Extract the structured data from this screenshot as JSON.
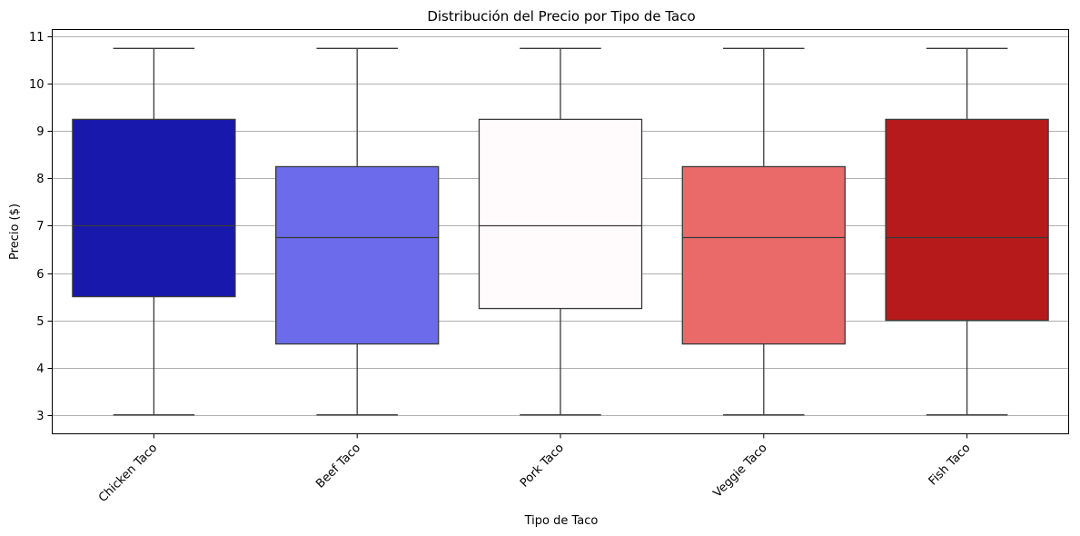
{
  "chart_data": {
    "type": "box",
    "title": "Distribución del Precio por Tipo de Taco",
    "xlabel": "Tipo de Taco",
    "ylabel": "Precio ($)",
    "ylim": [
      2.6,
      11.15
    ],
    "yticks": [
      3,
      4,
      5,
      6,
      7,
      8,
      9,
      10,
      11
    ],
    "grid": "horizontal",
    "categories": [
      "Chicken Taco",
      "Beef Taco",
      "Pork Taco",
      "Veggie Taco",
      "Fish Taco"
    ],
    "boxes": [
      {
        "category": "Chicken Taco",
        "min": 3,
        "q1": 5.5,
        "median": 7.0,
        "q3": 9.25,
        "max": 10.75,
        "color": "#1818ad"
      },
      {
        "category": "Beef Taco",
        "min": 3,
        "q1": 4.5,
        "median": 6.75,
        "q3": 8.25,
        "max": 10.75,
        "color": "#6b6beb"
      },
      {
        "category": "Pork Taco",
        "min": 3,
        "q1": 5.25,
        "median": 7.0,
        "q3": 9.25,
        "max": 10.75,
        "color": "#fffbfd"
      },
      {
        "category": "Veggie Taco",
        "min": 3,
        "q1": 4.5,
        "median": 6.75,
        "q3": 8.25,
        "max": 10.75,
        "color": "#ea6a6a"
      },
      {
        "category": "Fish Taco",
        "min": 3,
        "q1": 5.0,
        "median": 6.75,
        "q3": 9.25,
        "max": 10.75,
        "color": "#b61a1a"
      }
    ]
  }
}
